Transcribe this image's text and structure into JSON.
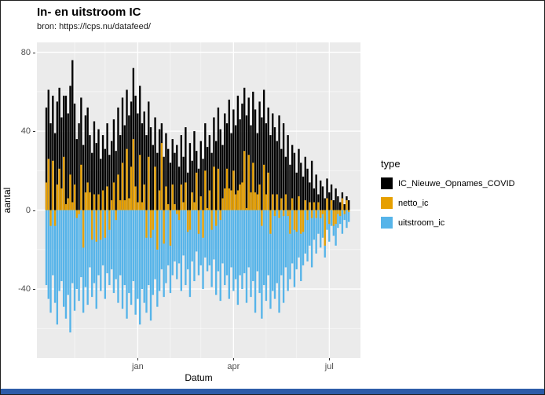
{
  "window": {
    "title": "In- en uitstroom IC",
    "subtitle": "bron: https://lcps.nu/datafeed/"
  },
  "frame": {
    "bottom_bar_color": "#2D5CA8",
    "border_color": "#1f1f1f"
  },
  "chart_data": {
    "type": "bar",
    "title": "In- en uitstroom IC",
    "subtitle": "bron: https://lcps.nu/datafeed/",
    "xlabel": "Datum",
    "ylabel": "aantal",
    "ylim": [
      -75,
      85
    ],
    "y_ticks": [
      -40,
      0,
      40,
      80
    ],
    "y_minor_ticks": [
      -60,
      -20,
      20,
      60
    ],
    "x_tick_labels": [
      "jan",
      "apr",
      "jul"
    ],
    "x_tick_indices": [
      42,
      86,
      130
    ],
    "x_minor_indices": [
      13,
      27,
      57,
      71,
      101,
      115
    ],
    "n_points": 140,
    "panel_bg": "#EBEBEB",
    "grid_major_color": "#FFFFFF",
    "grid_minor_color": "rgba(255,255,255,0.55)",
    "grid": true,
    "legend": {
      "title": "type",
      "position": "right"
    },
    "series": [
      {
        "name": "IC_Nieuwe_Opnames_COVID",
        "color": "#000000",
        "values": [
          52,
          61,
          44,
          58,
          39,
          55,
          62,
          47,
          58,
          58,
          49,
          63,
          76,
          54,
          36,
          44,
          57,
          33,
          48,
          52,
          38,
          29,
          45,
          34,
          41,
          26,
          38,
          31,
          44,
          28,
          35,
          46,
          30,
          52,
          38,
          57,
          43,
          61,
          48,
          55,
          72,
          58,
          49,
          63,
          44,
          50,
          38,
          55,
          42,
          33,
          47,
          29,
          41,
          44,
          27,
          39,
          31,
          24,
          36,
          29,
          33,
          22,
          38,
          27,
          42,
          19,
          34,
          25,
          40,
          30,
          21,
          35,
          26,
          44,
          32,
          38,
          29,
          47,
          35,
          52,
          41,
          33,
          49,
          44,
          56,
          39,
          51,
          43,
          58,
          46,
          54,
          62,
          48,
          57,
          43,
          60,
          51,
          39,
          55,
          47,
          61,
          44,
          52,
          38,
          49,
          42,
          35,
          48,
          31,
          44,
          27,
          38,
          23,
          33,
          29,
          19,
          31,
          24,
          17,
          27,
          21,
          14,
          25,
          11,
          18,
          8,
          15,
          12,
          6,
          16,
          9,
          13,
          5,
          11,
          7,
          4,
          9,
          3,
          7,
          5
        ]
      },
      {
        "name": "netto_ic",
        "color": "#E69F00",
        "values": [
          14,
          26,
          -8,
          25,
          -8,
          13,
          21,
          11,
          27,
          3,
          6,
          18,
          4,
          13,
          -4,
          -2,
          23,
          -19,
          9,
          14,
          9,
          -15,
          8,
          -16,
          8,
          -15,
          10,
          -14,
          12,
          -10,
          5,
          14,
          -5,
          18,
          5,
          24,
          5,
          31,
          6,
          22,
          36,
          12,
          4,
          28,
          4,
          13,
          -14,
          27,
          -14,
          -10,
          22,
          -20,
          10,
          34,
          -17,
          12,
          3,
          -18,
          13,
          3,
          -2,
          -5,
          13,
          4,
          14,
          -11,
          -10,
          9,
          4,
          19,
          -12,
          7,
          -14,
          20,
          1,
          10,
          -10,
          22,
          -8,
          21,
          -5,
          6,
          11,
          21,
          11,
          10,
          20,
          8,
          10,
          13,
          14,
          30,
          1,
          28,
          9,
          24,
          9,
          8,
          13,
          -8,
          23,
          8,
          19,
          -12,
          8,
          -3,
          8,
          -4,
          6,
          -3,
          8,
          -3,
          -12,
          6,
          -10,
          -11,
          7,
          -12,
          -11,
          5,
          -5,
          4,
          -4,
          4,
          -4,
          4,
          -4,
          -2,
          -18,
          6,
          -7,
          5,
          -8,
          -7,
          -2,
          -3,
          6,
          -2,
          5,
          -1
        ]
      },
      {
        "name": "uitstroom_ic",
        "color": "#56B4E9",
        "values": [
          -38,
          -45,
          -52,
          -33,
          -47,
          -58,
          -41,
          -36,
          -49,
          -55,
          -43,
          -62,
          -37,
          -51,
          -40,
          -46,
          -34,
          -52,
          -39,
          -48,
          -29,
          -44,
          -37,
          -50,
          -33,
          -41,
          -28,
          -45,
          -32,
          -38,
          -30,
          -42,
          -35,
          -47,
          -33,
          -50,
          -38,
          -55,
          -42,
          -48,
          -36,
          -53,
          -45,
          -58,
          -40,
          -47,
          -52,
          -38,
          -56,
          -43,
          -35,
          -49,
          -41,
          -30,
          -44,
          -37,
          -28,
          -42,
          -33,
          -26,
          -35,
          -27,
          -41,
          -23,
          -38,
          -30,
          -44,
          -26,
          -36,
          -21,
          -33,
          -28,
          -40,
          -24,
          -31,
          -28,
          -39,
          -25,
          -43,
          -31,
          -46,
          -27,
          -38,
          -33,
          -45,
          -29,
          -41,
          -35,
          -48,
          -33,
          -40,
          -32,
          -47,
          -29,
          -44,
          -36,
          -52,
          -31,
          -42,
          -55,
          -38,
          -46,
          -33,
          -50,
          -41,
          -45,
          -37,
          -52,
          -33,
          -47,
          -29,
          -41,
          -35,
          -27,
          -39,
          -30,
          -24,
          -36,
          -28,
          -22,
          -26,
          -18,
          -29,
          -15,
          -22,
          -12,
          -19,
          -14,
          -24,
          -10,
          -16,
          -8,
          -13,
          -18,
          -9,
          -7,
          -12,
          -5,
          -9,
          -6
        ]
      }
    ]
  }
}
